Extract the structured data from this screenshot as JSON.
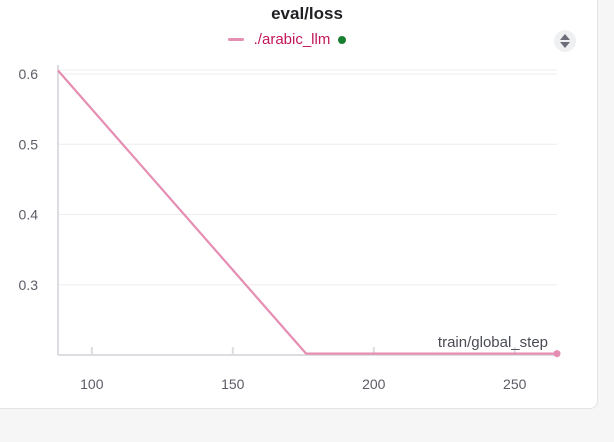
{
  "chart_data": {
    "type": "line",
    "title": "eval/loss",
    "xlabel": "train/global_step",
    "ylabel": "",
    "xlim": [
      88,
      265
    ],
    "ylim": [
      0.2,
      0.62
    ],
    "x_ticks": [
      100,
      150,
      200,
      250
    ],
    "y_ticks": [
      0.3,
      0.4,
      0.5,
      0.6
    ],
    "x_tick_labels": [
      "100",
      "150",
      "200",
      "250"
    ],
    "y_tick_labels": [
      "0.3",
      "0.4",
      "0.5",
      "0.6"
    ],
    "grid": true,
    "legend_position": "top-center",
    "series": [
      {
        "name": "./arabic_llm",
        "color": "#e58db2",
        "x": [
          88,
          176,
          265
        ],
        "y": [
          0.605,
          0.202,
          0.202
        ]
      }
    ]
  },
  "legend": {
    "label": "./arabic_llm",
    "status_color": "#1a7f2e"
  },
  "menu": {
    "icon": "chevron-up-down-icon"
  }
}
